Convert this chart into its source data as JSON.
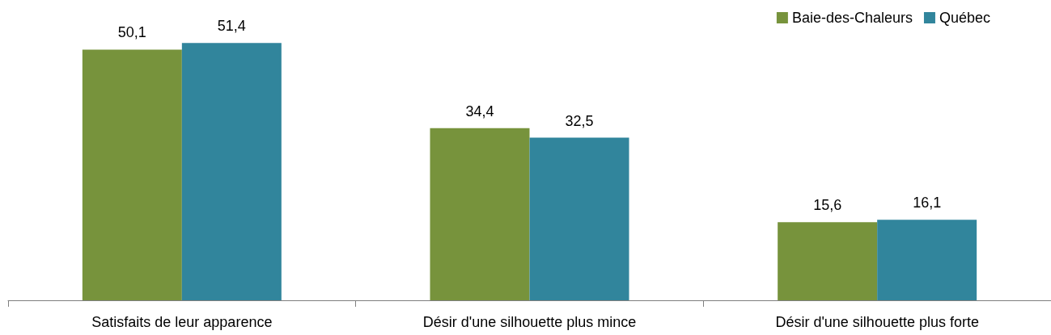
{
  "chart_data": {
    "type": "bar",
    "categories": [
      "Satisfaits de leur apparence",
      "Désir d'une silhouette plus mince",
      "Désir d'une silhouette plus forte"
    ],
    "series": [
      {
        "name": "Baie-des-Chaleurs",
        "color": "#77933c",
        "values": [
          50.1,
          34.4,
          15.6
        ],
        "value_labels": [
          "50,1",
          "34,4",
          "15,6"
        ]
      },
      {
        "name": "Québec",
        "color": "#31859c",
        "values": [
          51.4,
          32.5,
          16.1
        ],
        "value_labels": [
          "51,4",
          "32,5",
          "16,1"
        ]
      }
    ],
    "legend": "top right"
  }
}
